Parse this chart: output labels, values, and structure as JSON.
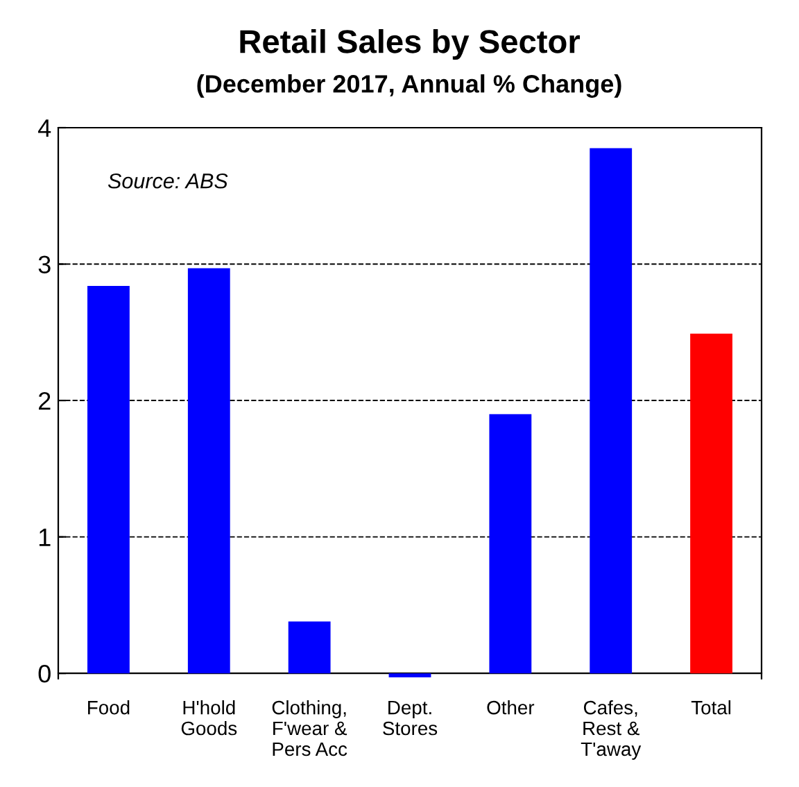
{
  "chart_data": {
    "type": "bar",
    "title": "Retail Sales by Sector",
    "subtitle": "(December 2017, Annual % Change)",
    "categories": [
      "Food",
      "H'hold\nGoods",
      "Clothing,\nF'wear &\nPers Acc",
      "Dept.\nStores",
      "Other",
      "Cafes,\nRest &\nT'away",
      "Total"
    ],
    "values": [
      2.84,
      2.97,
      0.38,
      -0.03,
      1.9,
      3.85,
      2.49
    ],
    "colors": [
      "#0000ff",
      "#0000ff",
      "#0000ff",
      "#0000ff",
      "#0000ff",
      "#0000ff",
      "#ff0000"
    ],
    "ylim": [
      -0.04,
      4
    ],
    "yticks": [
      0,
      1,
      2,
      3,
      4
    ],
    "grid": "y",
    "line_style": "dashed",
    "annotations": [
      "Source: ABS"
    ]
  }
}
